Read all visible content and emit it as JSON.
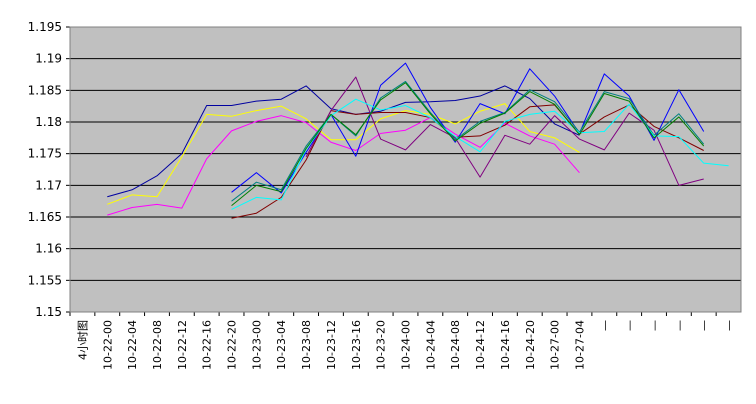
{
  "chart_data": {
    "type": "line",
    "grid": true,
    "legend": "none",
    "plot_background": "#c0c0c0",
    "ylim": [
      1.15,
      1.195
    ],
    "yticks": [
      "1.195",
      "1.19",
      "1.185",
      "1.18",
      "1.175",
      "1.17",
      "1.165",
      "1.16",
      "1.155",
      "1.15"
    ],
    "categories": [
      "4小时图",
      "10-22-00",
      "10-22-04",
      "10-22-08",
      "10-22-12",
      "10-22-16",
      "10-22-20",
      "10-23-00",
      "10-23-04",
      "10-23-08",
      "10-23-12",
      "10-23-16",
      "10-23-20",
      "10-24-00",
      "10-24-04",
      "10-24-08",
      "10-24-12",
      "10-24-16",
      "10-24-20",
      "10-27-00",
      "10-27-04",
      "—",
      "—",
      "—",
      "—",
      "—",
      "—"
    ],
    "series": [
      {
        "color": "#0000a0",
        "values": [
          null,
          1.1682,
          1.1693,
          1.1715,
          1.175,
          1.1826,
          1.1826,
          1.1833,
          1.1836,
          1.1857,
          1.1821,
          1.1812,
          1.1817,
          1.1831,
          1.1832,
          1.1834,
          1.1841,
          1.1857,
          1.1837,
          1.1797,
          1.1779,
          null,
          null,
          null,
          null,
          null,
          null
        ]
      },
      {
        "color": "#ffff00",
        "values": [
          null,
          1.167,
          1.1685,
          1.1682,
          1.1745,
          1.1812,
          1.1809,
          1.1818,
          1.1825,
          1.1805,
          1.1772,
          1.1772,
          1.1805,
          1.1818,
          1.1812,
          1.1797,
          1.1817,
          1.1829,
          1.1785,
          1.1775,
          1.1752,
          null,
          null,
          null,
          null,
          null,
          null
        ]
      },
      {
        "color": "#ff00ff",
        "values": [
          null,
          1.1653,
          1.1665,
          1.167,
          1.1664,
          1.1742,
          1.1786,
          1.1801,
          1.181,
          1.1799,
          1.1768,
          1.1755,
          1.1782,
          1.1787,
          1.1807,
          1.1781,
          1.176,
          1.1798,
          1.1778,
          1.1765,
          1.172,
          null,
          null,
          null,
          null,
          null,
          null
        ]
      },
      {
        "color": "#0000ff",
        "values": [
          null,
          null,
          null,
          null,
          null,
          null,
          1.1689,
          1.172,
          1.1688,
          1.1752,
          1.1812,
          1.1746,
          1.1858,
          1.1893,
          1.1823,
          1.1768,
          1.1829,
          1.1813,
          1.1884,
          1.1841,
          1.1782,
          1.1876,
          1.1841,
          1.1771,
          1.1851,
          1.1785,
          null
        ]
      },
      {
        "color": "#800000",
        "values": [
          null,
          null,
          null,
          null,
          null,
          null,
          1.1648,
          1.1656,
          1.1681,
          1.174,
          1.1818,
          1.1812,
          1.1815,
          1.1815,
          1.1807,
          1.1776,
          1.1778,
          1.1795,
          1.1824,
          1.1827,
          1.1781,
          1.1808,
          1.1827,
          1.1793,
          1.1775,
          1.1755,
          null
        ]
      },
      {
        "color": "#800080",
        "values": [
          null,
          null,
          null,
          null,
          null,
          null,
          null,
          null,
          null,
          1.1745,
          1.1818,
          1.1871,
          1.1773,
          1.1756,
          1.1796,
          1.1775,
          1.1713,
          1.1779,
          1.1765,
          1.181,
          1.1773,
          1.1756,
          1.1814,
          1.1787,
          1.17,
          1.171,
          null
        ]
      },
      {
        "color": "#008080",
        "values": [
          null,
          null,
          null,
          null,
          null,
          null,
          1.1675,
          1.1705,
          1.1693,
          1.1762,
          1.1812,
          1.1778,
          1.1838,
          1.1864,
          1.1815,
          1.1772,
          1.1801,
          1.1815,
          1.1851,
          1.1832,
          1.1784,
          1.1848,
          1.1837,
          1.1779,
          1.1813,
          1.1765,
          null
        ]
      },
      {
        "color": "#00ffff",
        "values": [
          null,
          null,
          null,
          null,
          null,
          null,
          1.1662,
          1.1681,
          1.1677,
          1.1757,
          1.181,
          1.1836,
          1.1819,
          1.1826,
          1.1807,
          1.1777,
          1.1753,
          1.1801,
          1.1812,
          1.1817,
          1.1783,
          1.1785,
          1.1828,
          1.1778,
          1.1777,
          1.1735,
          1.1731
        ]
      },
      {
        "color": "#008000",
        "values": [
          null,
          null,
          null,
          null,
          null,
          null,
          1.1668,
          1.17,
          1.169,
          1.1758,
          1.1812,
          1.178,
          1.1835,
          1.1862,
          1.1813,
          1.177,
          1.1798,
          1.1814,
          1.1848,
          1.1828,
          1.178,
          1.1845,
          1.1833,
          1.1775,
          1.1808,
          1.1762,
          null
        ]
      }
    ]
  }
}
